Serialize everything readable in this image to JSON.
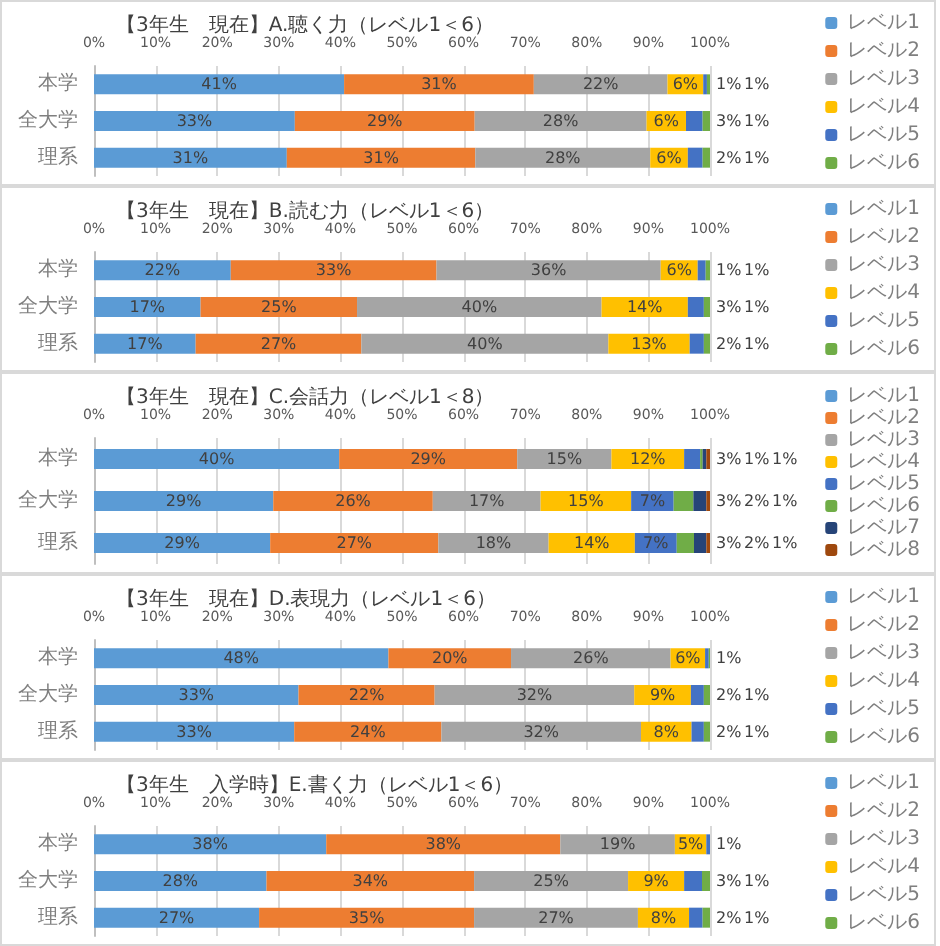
{
  "chart_data": [
    {
      "type": "bar",
      "orientation": "horizontal",
      "stacked": true,
      "title": "【3年生　現在】A.聴く力（レベル1＜6）",
      "categories": [
        "本学",
        "全大学",
        "理系"
      ],
      "xlim": [
        0,
        100
      ],
      "xticks": [
        {
          "value": 0,
          "label": "0%"
        },
        {
          "value": 10,
          "label": "10%"
        },
        {
          "value": 20,
          "label": "20%"
        },
        {
          "value": 30,
          "label": "30%"
        },
        {
          "value": 40,
          "label": "40%"
        },
        {
          "value": 50,
          "label": "50%"
        },
        {
          "value": 60,
          "label": "60%"
        },
        {
          "value": 70,
          "label": "70%"
        },
        {
          "value": 80,
          "label": "80%"
        },
        {
          "value": 90,
          "label": "90%"
        },
        {
          "value": 100,
          "label": "100%"
        }
      ],
      "grid": "x",
      "legend": "right",
      "series": [
        {
          "name": "レベル1",
          "color": "#5b9bd5",
          "values": [
            40.6,
            32.6,
            31.3
          ],
          "value_labels": [
            "41%",
            "33%",
            "31%"
          ]
        },
        {
          "name": "レベル2",
          "color": "#ed7d31",
          "values": [
            30.8,
            29.2,
            30.6
          ],
          "value_labels": [
            "31%",
            "29%",
            "31%"
          ]
        },
        {
          "name": "レベル3",
          "color": "#a5a5a5",
          "values": [
            21.7,
            27.9,
            28.4
          ],
          "value_labels": [
            "22%",
            "28%",
            "28%"
          ]
        },
        {
          "name": "レベル4",
          "color": "#ffc000",
          "values": [
            5.8,
            6.4,
            6.1
          ],
          "value_labels": [
            "6%",
            "6%",
            "6%"
          ]
        },
        {
          "name": "レベル5",
          "color": "#4472c4",
          "values": [
            0.6,
            2.7,
            2.4
          ],
          "value_labels": [
            "1%",
            "3%",
            "2%"
          ]
        },
        {
          "name": "レベル6",
          "color": "#70ad47",
          "values": [
            0.5,
            1.2,
            1.2
          ],
          "value_labels": [
            "1%",
            "1%",
            "1%"
          ]
        }
      ]
    },
    {
      "type": "bar",
      "orientation": "horizontal",
      "stacked": true,
      "title": "【3年生　現在】B.読む力（レベル1＜6）",
      "categories": [
        "本学",
        "全大学",
        "理系"
      ],
      "xlim": [
        0,
        100
      ],
      "xticks": [
        {
          "value": 0,
          "label": "0%"
        },
        {
          "value": 10,
          "label": "10%"
        },
        {
          "value": 20,
          "label": "20%"
        },
        {
          "value": 30,
          "label": "30%"
        },
        {
          "value": 40,
          "label": "40%"
        },
        {
          "value": 50,
          "label": "50%"
        },
        {
          "value": 60,
          "label": "60%"
        },
        {
          "value": 70,
          "label": "70%"
        },
        {
          "value": 80,
          "label": "80%"
        },
        {
          "value": 90,
          "label": "90%"
        },
        {
          "value": 100,
          "label": "100%"
        }
      ],
      "grid": "x",
      "legend": "right",
      "series": [
        {
          "name": "レベル1",
          "color": "#5b9bd5",
          "values": [
            22.2,
            17.3,
            16.5
          ],
          "value_labels": [
            "22%",
            "17%",
            "17%"
          ]
        },
        {
          "name": "レベル2",
          "color": "#ed7d31",
          "values": [
            33.4,
            25.4,
            26.9
          ],
          "value_labels": [
            "33%",
            "25%",
            "27%"
          ]
        },
        {
          "name": "レベル3",
          "color": "#a5a5a5",
          "values": [
            36.4,
            39.7,
            40.1
          ],
          "value_labels": [
            "36%",
            "40%",
            "40%"
          ]
        },
        {
          "name": "レベル4",
          "color": "#ffc000",
          "values": [
            6.0,
            14.0,
            13.2
          ],
          "value_labels": [
            "6%",
            "14%",
            "13%"
          ]
        },
        {
          "name": "レベル5",
          "color": "#4472c4",
          "values": [
            1.3,
            2.6,
            2.3
          ],
          "value_labels": [
            "1%",
            "3%",
            "2%"
          ]
        },
        {
          "name": "レベル6",
          "color": "#70ad47",
          "values": [
            0.7,
            1.0,
            1.0
          ],
          "value_labels": [
            "1%",
            "1%",
            "1%"
          ]
        }
      ]
    },
    {
      "type": "bar",
      "orientation": "horizontal",
      "stacked": true,
      "title": "【3年生　現在】C.会話力（レベル1＜8）",
      "categories": [
        "本学",
        "全大学",
        "理系"
      ],
      "xlim": [
        0,
        100
      ],
      "xticks": [
        {
          "value": 0,
          "label": "0%"
        },
        {
          "value": 10,
          "label": "10%"
        },
        {
          "value": 20,
          "label": "20%"
        },
        {
          "value": 30,
          "label": "30%"
        },
        {
          "value": 40,
          "label": "40%"
        },
        {
          "value": 50,
          "label": "50%"
        },
        {
          "value": 60,
          "label": "60%"
        },
        {
          "value": 70,
          "label": "70%"
        },
        {
          "value": 80,
          "label": "80%"
        },
        {
          "value": 90,
          "label": "90%"
        },
        {
          "value": 100,
          "label": "100%"
        }
      ],
      "grid": "x",
      "legend": "right",
      "series": [
        {
          "name": "レベル1",
          "color": "#5b9bd5",
          "values": [
            39.8,
            29.1,
            28.6
          ],
          "value_labels": [
            "40%",
            "29%",
            "29%"
          ]
        },
        {
          "name": "レベル2",
          "color": "#ed7d31",
          "values": [
            28.9,
            25.9,
            27.3
          ],
          "value_labels": [
            "29%",
            "26%",
            "27%"
          ]
        },
        {
          "name": "レベル3",
          "color": "#a5a5a5",
          "values": [
            15.3,
            17.5,
            17.9
          ],
          "value_labels": [
            "15%",
            "17%",
            "18%"
          ]
        },
        {
          "name": "レベル4",
          "color": "#ffc000",
          "values": [
            11.8,
            14.7,
            14.0
          ],
          "value_labels": [
            "12%",
            "15%",
            "14%"
          ]
        },
        {
          "name": "レベル5",
          "color": "#4472c4",
          "values": [
            2.6,
            6.9,
            6.8
          ],
          "value_labels": [
            "3%",
            "7%",
            "7%"
          ]
        },
        {
          "name": "レベル6",
          "color": "#70ad47",
          "values": [
            0.4,
            3.2,
            2.8
          ],
          "value_labels": [
            null,
            "3%",
            "3%"
          ]
        },
        {
          "name": "レベル7",
          "color": "#264478",
          "values": [
            0.6,
            2.1,
            2.0
          ],
          "value_labels": [
            "1%",
            "2%",
            "2%"
          ]
        },
        {
          "name": "レベル8",
          "color": "#9e480e",
          "values": [
            0.6,
            0.6,
            0.6
          ],
          "value_labels": [
            "1%",
            "1%",
            "1%"
          ]
        }
      ]
    },
    {
      "type": "bar",
      "orientation": "horizontal",
      "stacked": true,
      "title": "【3年生　現在】D.表現力（レベル1＜6）",
      "categories": [
        "本学",
        "全大学",
        "理系"
      ],
      "xlim": [
        0,
        100
      ],
      "xticks": [
        {
          "value": 0,
          "label": "0%"
        },
        {
          "value": 10,
          "label": "10%"
        },
        {
          "value": 20,
          "label": "20%"
        },
        {
          "value": 30,
          "label": "30%"
        },
        {
          "value": 40,
          "label": "40%"
        },
        {
          "value": 50,
          "label": "50%"
        },
        {
          "value": 60,
          "label": "60%"
        },
        {
          "value": 70,
          "label": "70%"
        },
        {
          "value": 80,
          "label": "80%"
        },
        {
          "value": 90,
          "label": "90%"
        },
        {
          "value": 100,
          "label": "100%"
        }
      ],
      "grid": "x",
      "legend": "right",
      "series": [
        {
          "name": "レベル1",
          "color": "#5b9bd5",
          "values": [
            47.8,
            33.2,
            32.5
          ],
          "value_labels": [
            "48%",
            "33%",
            "33%"
          ]
        },
        {
          "name": "レベル2",
          "color": "#ed7d31",
          "values": [
            19.9,
            22.1,
            23.9
          ],
          "value_labels": [
            "20%",
            "22%",
            "24%"
          ]
        },
        {
          "name": "レベル3",
          "color": "#a5a5a5",
          "values": [
            25.9,
            32.4,
            32.4
          ],
          "value_labels": [
            "26%",
            "32%",
            "32%"
          ]
        },
        {
          "name": "レベル4",
          "color": "#ffc000",
          "values": [
            5.6,
            9.2,
            8.2
          ],
          "value_labels": [
            "6%",
            "9%",
            "8%"
          ]
        },
        {
          "name": "レベル5",
          "color": "#4472c4",
          "values": [
            0.6,
            2.1,
            2.0
          ],
          "value_labels": [
            "1%",
            "2%",
            "2%"
          ]
        },
        {
          "name": "レベル6",
          "color": "#70ad47",
          "values": [
            0.2,
            1.0,
            1.0
          ],
          "value_labels": [
            null,
            "1%",
            "1%"
          ]
        }
      ]
    },
    {
      "type": "bar",
      "orientation": "horizontal",
      "stacked": true,
      "title": "【3年生　入学時】E.書く力（レベル1＜6）",
      "categories": [
        "本学",
        "全大学",
        "理系"
      ],
      "xlim": [
        0,
        100
      ],
      "xticks": [
        {
          "value": 0,
          "label": "0%"
        },
        {
          "value": 10,
          "label": "10%"
        },
        {
          "value": 20,
          "label": "20%"
        },
        {
          "value": 30,
          "label": "30%"
        },
        {
          "value": 40,
          "label": "40%"
        },
        {
          "value": 50,
          "label": "50%"
        },
        {
          "value": 60,
          "label": "60%"
        },
        {
          "value": 70,
          "label": "70%"
        },
        {
          "value": 80,
          "label": "80%"
        },
        {
          "value": 90,
          "label": "90%"
        },
        {
          "value": 100,
          "label": "100%"
        }
      ],
      "grid": "x",
      "legend": "right",
      "series": [
        {
          "name": "レベル1",
          "color": "#5b9bd5",
          "values": [
            37.7,
            28.0,
            26.8
          ],
          "value_labels": [
            "38%",
            "28%",
            "27%"
          ]
        },
        {
          "name": "レベル2",
          "color": "#ed7d31",
          "values": [
            38.0,
            33.7,
            34.9
          ],
          "value_labels": [
            "38%",
            "34%",
            "35%"
          ]
        },
        {
          "name": "レベル3",
          "color": "#a5a5a5",
          "values": [
            18.6,
            25.0,
            26.6
          ],
          "value_labels": [
            "19%",
            "25%",
            "27%"
          ]
        },
        {
          "name": "レベル4",
          "color": "#ffc000",
          "values": [
            5.1,
            9.1,
            8.3
          ],
          "value_labels": [
            "5%",
            "9%",
            "8%"
          ]
        },
        {
          "name": "レベル5",
          "color": "#4472c4",
          "values": [
            0.6,
            2.9,
            2.2
          ],
          "value_labels": [
            "1%",
            "3%",
            "2%"
          ]
        },
        {
          "name": "レベル6",
          "color": "#70ad47",
          "values": [
            0,
            1.3,
            1.2
          ],
          "value_labels": [
            null,
            "1%",
            "1%"
          ]
        }
      ]
    }
  ]
}
